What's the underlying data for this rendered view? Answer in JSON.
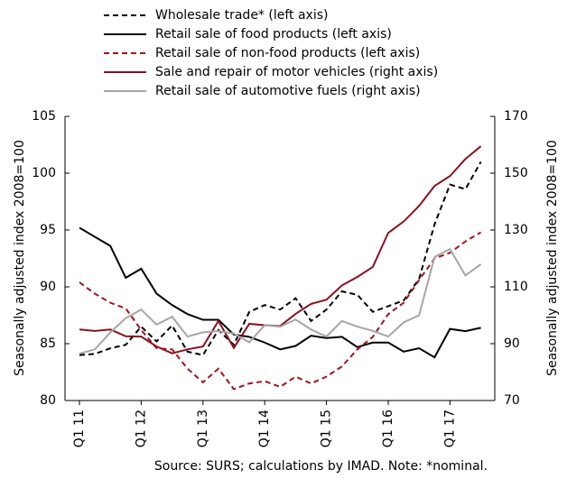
{
  "chart_data": {
    "type": "line",
    "categories": [
      "Q1 11",
      null,
      null,
      null,
      "Q1 12",
      null,
      null,
      null,
      "Q1 13",
      null,
      null,
      null,
      "Q1 14",
      null,
      null,
      null,
      "Q1 15",
      null,
      null,
      null,
      "Q1 16",
      null,
      null,
      null,
      "Q1 17",
      null,
      null
    ],
    "series": [
      {
        "name": "Wholesale trade* (left axis)",
        "color": "#000000",
        "dashed": true,
        "axis": "y",
        "values": [
          84.0,
          84.1,
          84.6,
          84.9,
          86.5,
          85.2,
          86.6,
          84.3,
          84.0,
          86.2,
          84.9,
          87.8,
          88.4,
          88.0,
          89.0,
          87.0,
          88.0,
          89.6,
          89.3,
          87.8,
          88.3,
          88.8,
          90.7,
          95.5,
          99.0,
          98.6,
          101.0
        ]
      },
      {
        "name": "Retail sale of food products (left axis)",
        "color": "#000000",
        "dashed": false,
        "axis": "y",
        "values": [
          95.2,
          94.4,
          93.6,
          90.8,
          91.6,
          89.4,
          88.4,
          87.6,
          87.1,
          87.1,
          85.8,
          85.6,
          85.1,
          84.5,
          84.8,
          85.7,
          85.5,
          85.6,
          84.7,
          85.1,
          85.1,
          84.3,
          84.6,
          83.8,
          86.3,
          86.1,
          86.4
        ]
      },
      {
        "name": "Retail sale of non-food products (left axis)",
        "color": "#a0141e",
        "dashed": true,
        "axis": "y",
        "values": [
          90.4,
          89.4,
          88.6,
          88.1,
          86.2,
          84.6,
          84.5,
          82.8,
          81.6,
          82.8,
          81.0,
          81.5,
          81.7,
          81.2,
          82.1,
          81.5,
          82.1,
          83.0,
          84.5,
          85.6,
          87.6,
          88.6,
          90.6,
          92.5,
          93.0,
          94.0,
          94.8
        ]
      },
      {
        "name": "Sale and repair of motor vehicles (right axis)",
        "color": "#8b1020",
        "dashed": false,
        "axis": "y2",
        "values": [
          95.0,
          94.5,
          95.0,
          92.6,
          92.5,
          89.0,
          86.6,
          88.0,
          89.0,
          98.0,
          88.5,
          97.0,
          96.5,
          96.2,
          100.5,
          104.0,
          105.5,
          110.5,
          113.5,
          117.0,
          129.0,
          133.0,
          138.5,
          145.5,
          149.0,
          155.0,
          159.5
        ]
      },
      {
        "name": "Retail sale of automotive fuels (right axis)",
        "color": "#a6a6a6",
        "dashed": false,
        "axis": "y2",
        "values": [
          86.5,
          88.0,
          94.0,
          99.0,
          102.0,
          96.7,
          99.5,
          92.5,
          94.0,
          94.4,
          93.6,
          90.5,
          96.5,
          96.0,
          98.5,
          95.0,
          92.5,
          98.0,
          96.0,
          94.5,
          92.5,
          97.5,
          100.0,
          120.5,
          123.3,
          114.0,
          118.0
        ]
      }
    ],
    "ylabel": "Seasonally adjusted index 2008=100",
    "y2label": "Seasonally adjusted index 2008=100",
    "ylim": [
      80,
      105
    ],
    "yticks": [
      80,
      85,
      90,
      95,
      100,
      105
    ],
    "y2lim": [
      70,
      170
    ],
    "y2ticks": [
      70,
      90,
      110,
      130,
      150,
      170
    ],
    "source": "Source: SURS; calculations by IMAD. Note: *nominal."
  }
}
